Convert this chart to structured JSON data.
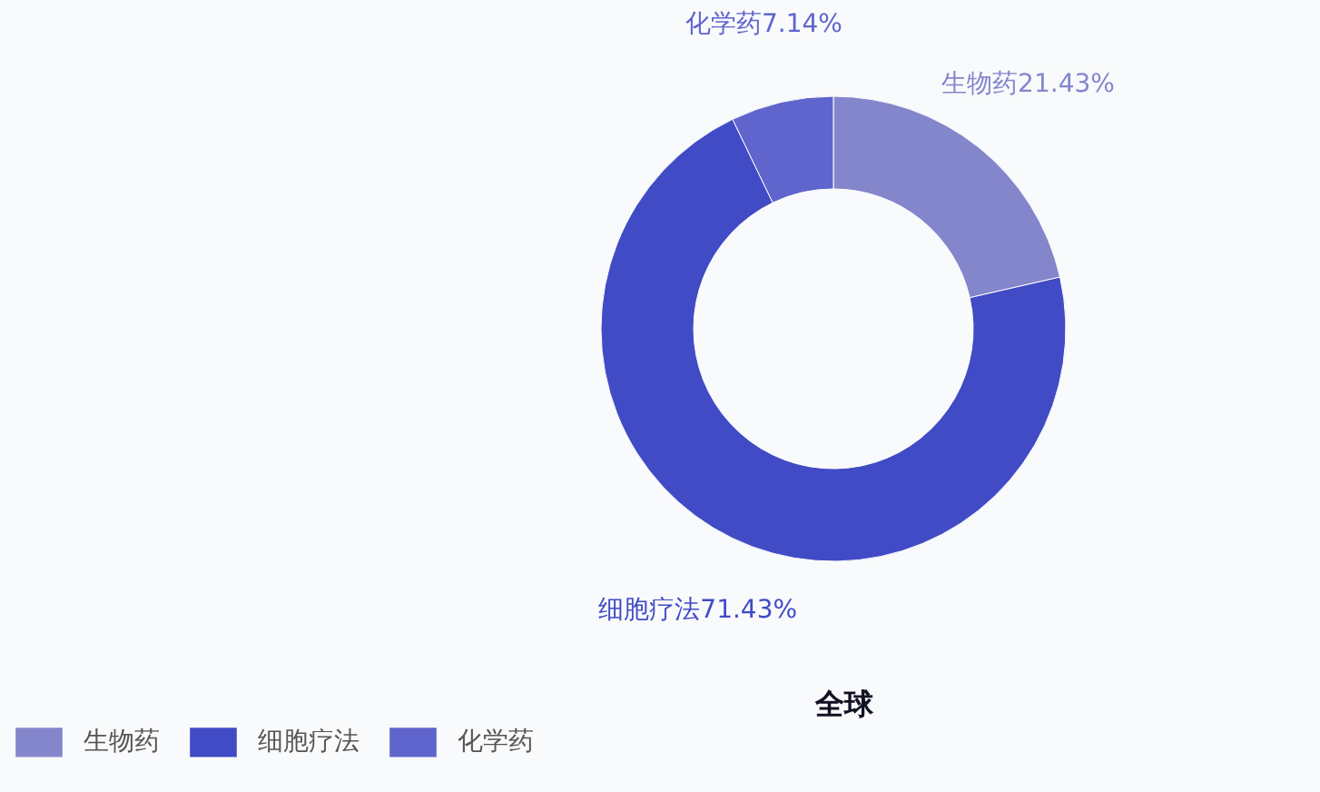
{
  "chart_data": {
    "type": "donut",
    "title": "全球",
    "categories": [
      "生物药",
      "细胞疗法",
      "化学药"
    ],
    "values": [
      21.43,
      71.43,
      7.14
    ],
    "colors": [
      "#8486cc",
      "#414bc5",
      "#5f65cc"
    ],
    "value_labels": [
      "生物药21.43%",
      "细胞疗法71.43%",
      "化学药7.14%"
    ],
    "legend": "bottom left"
  }
}
